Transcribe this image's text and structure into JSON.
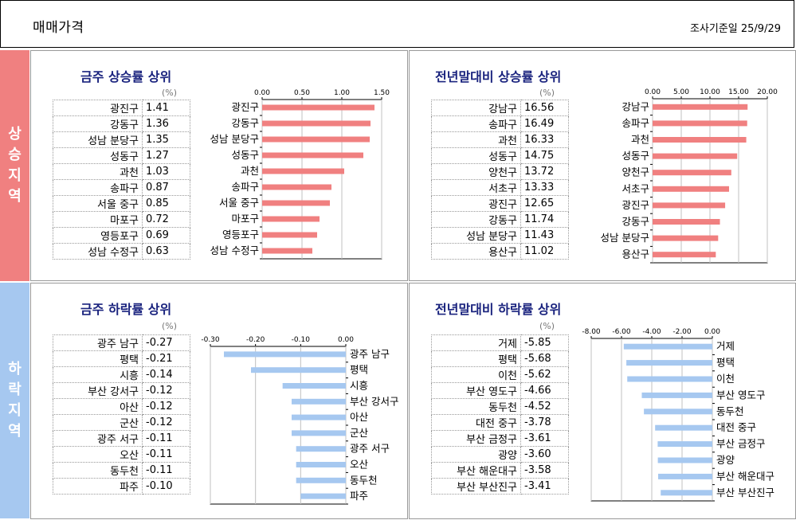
{
  "header": {
    "title": "매매가격",
    "date": "조사기준일 25/9/29"
  },
  "side_up": [
    "상",
    "승",
    "지",
    "역"
  ],
  "side_down": [
    "하",
    "락",
    "지",
    "역"
  ],
  "unit": "(%)",
  "panels": [
    {
      "title": "금주 상승률 상위",
      "color": "#f08080",
      "rows": [
        [
          "광진구",
          "1.41"
        ],
        [
          "강동구",
          "1.36"
        ],
        [
          "성남 분당구",
          "1.35"
        ],
        [
          "성동구",
          "1.27"
        ],
        [
          "과천",
          "1.03"
        ],
        [
          "송파구",
          "0.87"
        ],
        [
          "서울 중구",
          "0.85"
        ],
        [
          "마포구",
          "0.72"
        ],
        [
          "영등포구",
          "0.69"
        ],
        [
          "성남 수정구",
          "0.63"
        ]
      ]
    },
    {
      "title": "전년말대비 상승률 상위",
      "color": "#f08080",
      "rows": [
        [
          "강남구",
          "16.56"
        ],
        [
          "송파구",
          "16.49"
        ],
        [
          "과천",
          "16.33"
        ],
        [
          "성동구",
          "14.75"
        ],
        [
          "양천구",
          "13.72"
        ],
        [
          "서초구",
          "13.33"
        ],
        [
          "광진구",
          "12.65"
        ],
        [
          "강동구",
          "11.74"
        ],
        [
          "성남 분당구",
          "11.43"
        ],
        [
          "용산구",
          "11.02"
        ]
      ]
    },
    {
      "title": "금주 하락률 상위",
      "color": "#a6c8f0",
      "rows": [
        [
          "광주 남구",
          "-0.27"
        ],
        [
          "평택",
          "-0.21"
        ],
        [
          "시흥",
          "-0.14"
        ],
        [
          "부산 강서구",
          "-0.12"
        ],
        [
          "아산",
          "-0.12"
        ],
        [
          "군산",
          "-0.12"
        ],
        [
          "광주 서구",
          "-0.11"
        ],
        [
          "오산",
          "-0.11"
        ],
        [
          "동두천",
          "-0.11"
        ],
        [
          "파주",
          "-0.10"
        ]
      ]
    },
    {
      "title": "전년말대비 하락률 상위",
      "color": "#a6c8f0",
      "rows": [
        [
          "거제",
          "-5.85"
        ],
        [
          "평택",
          "-5.68"
        ],
        [
          "이천",
          "-5.62"
        ],
        [
          "부산 영도구",
          "-4.66"
        ],
        [
          "동두천",
          "-4.52"
        ],
        [
          "대전 중구",
          "-3.78"
        ],
        [
          "부산 금정구",
          "-3.61"
        ],
        [
          "광양",
          "-3.60"
        ],
        [
          "부산 해운대구",
          "-3.58"
        ],
        [
          "부산 부산진구",
          "-3.41"
        ]
      ]
    }
  ],
  "chart_data": [
    {
      "type": "bar",
      "categories": [
        "광진구",
        "강동구",
        "성남 분당구",
        "성동구",
        "과천",
        "송파구",
        "서울 중구",
        "마포구",
        "영등포구",
        "성남 수정구"
      ],
      "values": [
        1.41,
        1.36,
        1.35,
        1.27,
        1.03,
        0.87,
        0.85,
        0.72,
        0.69,
        0.63
      ],
      "ticks": [
        "0.00",
        "0.50",
        "1.00",
        "1.50"
      ],
      "xlim": [
        0,
        1.5
      ]
    },
    {
      "type": "bar",
      "categories": [
        "강남구",
        "송파구",
        "과천",
        "성동구",
        "양천구",
        "서초구",
        "광진구",
        "강동구",
        "성남 분당구",
        "용산구"
      ],
      "values": [
        16.56,
        16.49,
        16.33,
        14.75,
        13.72,
        13.33,
        12.65,
        11.74,
        11.43,
        11.02
      ],
      "ticks": [
        "0.00",
        "5.00",
        "10.00",
        "15.00",
        "20.00"
      ],
      "xlim": [
        0,
        20
      ]
    },
    {
      "type": "bar",
      "categories": [
        "광주 남구",
        "평택",
        "시흥",
        "부산 강서구",
        "아산",
        "군산",
        "광주 서구",
        "오산",
        "동두천",
        "파주"
      ],
      "values": [
        -0.27,
        -0.21,
        -0.14,
        -0.12,
        -0.12,
        -0.12,
        -0.11,
        -0.11,
        -0.11,
        -0.1
      ],
      "ticks": [
        "-0.30",
        "-0.20",
        "-0.10",
        "0.00"
      ],
      "xlim": [
        -0.3,
        0
      ]
    },
    {
      "type": "bar",
      "categories": [
        "거제",
        "평택",
        "이천",
        "부산 영도구",
        "동두천",
        "대전 중구",
        "부산 금정구",
        "광양",
        "부산 해운대구",
        "부산 부산진구"
      ],
      "values": [
        -5.85,
        -5.68,
        -5.62,
        -4.66,
        -4.52,
        -3.78,
        -3.61,
        -3.6,
        -3.58,
        -3.41
      ],
      "ticks": [
        "-8.00",
        "-6.00",
        "-4.00",
        "-2.00",
        "0.00"
      ],
      "xlim": [
        -8,
        0
      ]
    }
  ]
}
